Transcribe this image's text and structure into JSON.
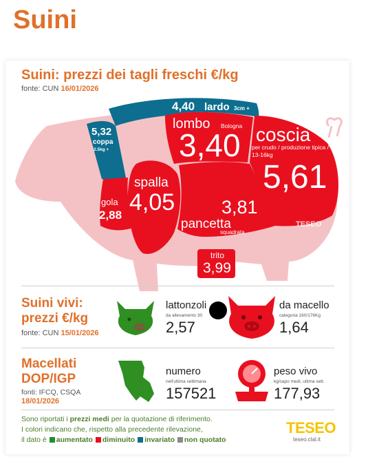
{
  "page_title": "Suini",
  "fresh": {
    "heading": "Suini: prezzi dei tagli freschi €/kg",
    "source_label": "fonte: CUN",
    "source_date": "16/01/2026"
  },
  "cuts": {
    "lardo": {
      "value": "4,40",
      "name": "lardo",
      "note": "3cm +"
    },
    "coppa": {
      "value": "5,32",
      "name": "coppa",
      "note": "2.5kg +"
    },
    "lombo": {
      "value": "3,40",
      "name": "lombo",
      "note": "Bologna"
    },
    "coscia": {
      "value": "5,61",
      "name": "coscia",
      "note": "per crudo / produzione tipica / 13-16kg"
    },
    "spalla": {
      "value": "4,05",
      "name": "spalla"
    },
    "gola": {
      "value": "2,88",
      "name": "gola"
    },
    "pancetta": {
      "value": "3,81",
      "name": "pancetta",
      "note": "squadrata"
    },
    "trito": {
      "value": "3,99",
      "name": "trito"
    }
  },
  "watermark": "TESEO",
  "live": {
    "heading_line1": "Suini vivi:",
    "heading_line2": "prezzi €/kg",
    "source_label": "fonte: CUN",
    "source_date": "15/01/2026",
    "lattonzoli": {
      "label": "lattonzoli",
      "note": "da allevamento 30",
      "value": "2,57"
    },
    "macello": {
      "label": "da macello",
      "note": "categoria 160/176Kg",
      "value": "1,64"
    }
  },
  "dop": {
    "heading_line1": "Macellati",
    "heading_line2": "DOP/IGP",
    "source_label": "fonti: IFCQ, CSQA",
    "source_date": "18/01/2026",
    "numero": {
      "label": "numero",
      "note": "nell'ultima settimana",
      "value": "157521"
    },
    "peso": {
      "label": "peso vivo",
      "note": "kg/capo medi, ultima sett.",
      "value": "177,93"
    }
  },
  "footer": {
    "line1_pre": "Sono riportati i ",
    "line1_bold": "prezzi medi",
    "line1_post": " per la quotazione di riferimento.",
    "line2": "I colori indicano che, rispetto alla precedente rilevazione,",
    "line3_pre": "il dato è",
    "legend": [
      {
        "label": "aumentato",
        "color": "#1e8e2c"
      },
      {
        "label": "diminuito",
        "color": "#e8101f"
      },
      {
        "label": "invariato",
        "color": "#0d6e8f"
      },
      {
        "label": "non quotato",
        "color": "#8a8a8a"
      }
    ],
    "logo": "TESEO",
    "logo_sub": "teseo.clal.it"
  },
  "colors": {
    "red": "#e8101f",
    "blue": "#0d6e8f",
    "pink": "#f4c2c5",
    "green": "#2f8f22",
    "orange": "#e0702a",
    "yellow": "#f5c400"
  }
}
